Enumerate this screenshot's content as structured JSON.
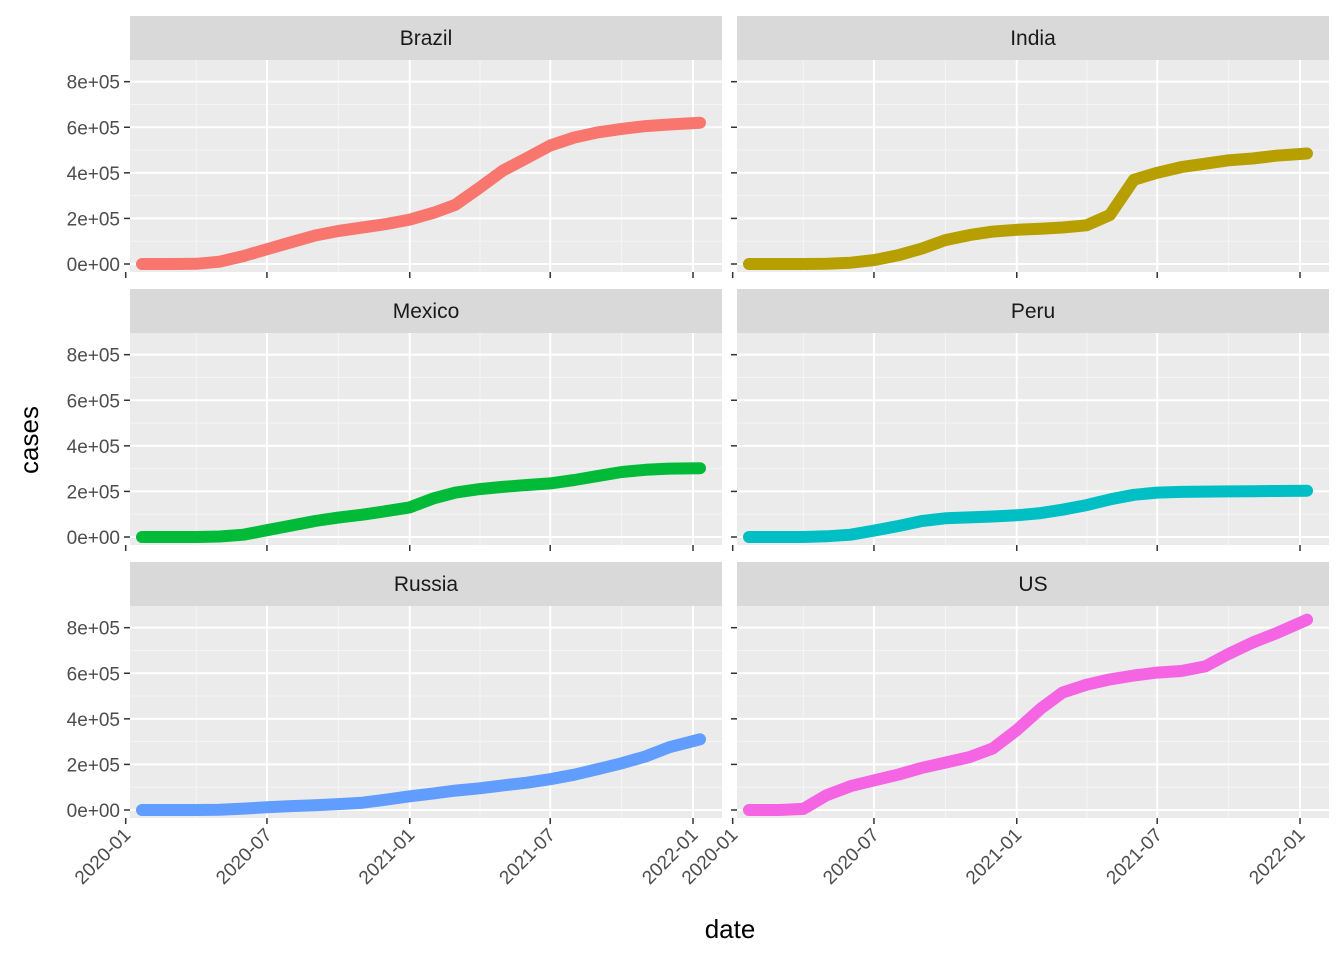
{
  "chart_data": {
    "type": "line",
    "layout": "facet-grid-3x2",
    "xlabel": "date",
    "ylabel": "cases",
    "x_range": [
      "2020-01-22",
      "2022-01-10"
    ],
    "ylim": [
      0,
      860000
    ],
    "x_ticks": [
      "2020-01",
      "2020-07",
      "2021-01",
      "2021-07",
      "2022-01"
    ],
    "y_ticks": [
      0,
      200000,
      400000,
      600000,
      800000
    ],
    "y_tick_labels": [
      "0e+00",
      "2e+05",
      "4e+05",
      "6e+05",
      "8e+05"
    ],
    "grid": true,
    "legend": "none",
    "x": [
      "2020-01-22",
      "2020-02-01",
      "2020-03-01",
      "2020-04-01",
      "2020-05-01",
      "2020-06-01",
      "2020-07-01",
      "2020-08-01",
      "2020-09-01",
      "2020-10-01",
      "2020-11-01",
      "2020-12-01",
      "2021-01-01",
      "2021-02-01",
      "2021-03-01",
      "2021-04-01",
      "2021-05-01",
      "2021-06-01",
      "2021-07-01",
      "2021-08-01",
      "2021-09-01",
      "2021-10-01",
      "2021-11-01",
      "2021-12-01",
      "2022-01-10"
    ],
    "series": [
      {
        "name": "Brazil",
        "color": "#F8766D",
        "values": [
          0,
          0,
          0,
          1000,
          10000,
          35000,
          65000,
          95000,
          125000,
          145000,
          160000,
          175000,
          195000,
          225000,
          260000,
          335000,
          410000,
          465000,
          520000,
          555000,
          578000,
          593000,
          605000,
          612000,
          620000
        ]
      },
      {
        "name": "India",
        "color": "#B79F00",
        "values": [
          0,
          0,
          0,
          100,
          1000,
          5500,
          17000,
          38000,
          68000,
          105000,
          127000,
          142000,
          150000,
          155000,
          160000,
          170000,
          215000,
          370000,
          400000,
          425000,
          440000,
          455000,
          463000,
          475000,
          485000
        ]
      },
      {
        "name": "Mexico",
        "color": "#00BA38",
        "values": [
          0,
          0,
          0,
          100,
          2000,
          10000,
          30000,
          50000,
          70000,
          85000,
          98000,
          113000,
          130000,
          170000,
          195000,
          210000,
          220000,
          228000,
          235000,
          250000,
          268000,
          285000,
          295000,
          300000,
          302000
        ]
      },
      {
        "name": "Peru",
        "color": "#00BFC4",
        "values": [
          0,
          0,
          0,
          200,
          3000,
          10000,
          28000,
          48000,
          70000,
          82000,
          86000,
          90000,
          95000,
          105000,
          120000,
          140000,
          165000,
          185000,
          195000,
          198000,
          199000,
          200000,
          201000,
          202000,
          203000
        ]
      },
      {
        "name": "Russia",
        "color": "#619CFF",
        "values": [
          0,
          0,
          0,
          0,
          1500,
          6000,
          12000,
          17000,
          21000,
          26000,
          32000,
          45000,
          60000,
          73000,
          85000,
          95000,
          108000,
          120000,
          135000,
          155000,
          180000,
          205000,
          235000,
          275000,
          310000
        ]
      },
      {
        "name": "US",
        "color": "#F564E3",
        "values": [
          0,
          0,
          0,
          5000,
          65000,
          105000,
          130000,
          155000,
          185000,
          208000,
          232000,
          270000,
          350000,
          445000,
          515000,
          550000,
          573000,
          590000,
          603000,
          610000,
          630000,
          685000,
          735000,
          775000,
          835000
        ]
      }
    ]
  }
}
